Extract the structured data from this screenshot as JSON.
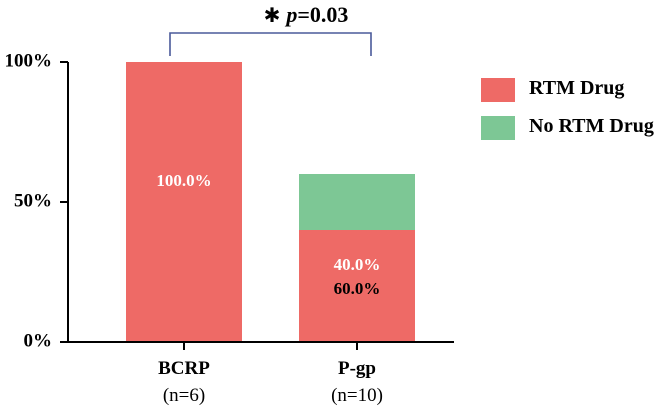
{
  "chart_data": {
    "type": "bar",
    "stacked": true,
    "normalized_percent": true,
    "categories": [
      "BCRP",
      "P-gp"
    ],
    "category_sublabels": [
      "(n=6)",
      "(n=10)"
    ],
    "series": [
      {
        "name": "No RTM Drug",
        "values": [
          0,
          60
        ],
        "labels": [
          "",
          "60.0%"
        ]
      },
      {
        "name": "RTM Drug",
        "values": [
          100,
          40
        ],
        "labels": [
          "100.0%",
          "40.0%"
        ]
      }
    ],
    "ylim": [
      0,
      100
    ],
    "yticks": [
      0,
      50,
      100
    ],
    "ytick_labels": [
      "0%",
      "50%",
      "100%"
    ],
    "grid": false,
    "legend": "right",
    "significance": {
      "star": "✱",
      "p_label": "p",
      "p_value": "=0.03"
    }
  },
  "colors": {
    "rtm": "#EE6A66",
    "no_rtm": "#7DC795",
    "bracket": "#4A5A9A",
    "axis": "#000000"
  }
}
